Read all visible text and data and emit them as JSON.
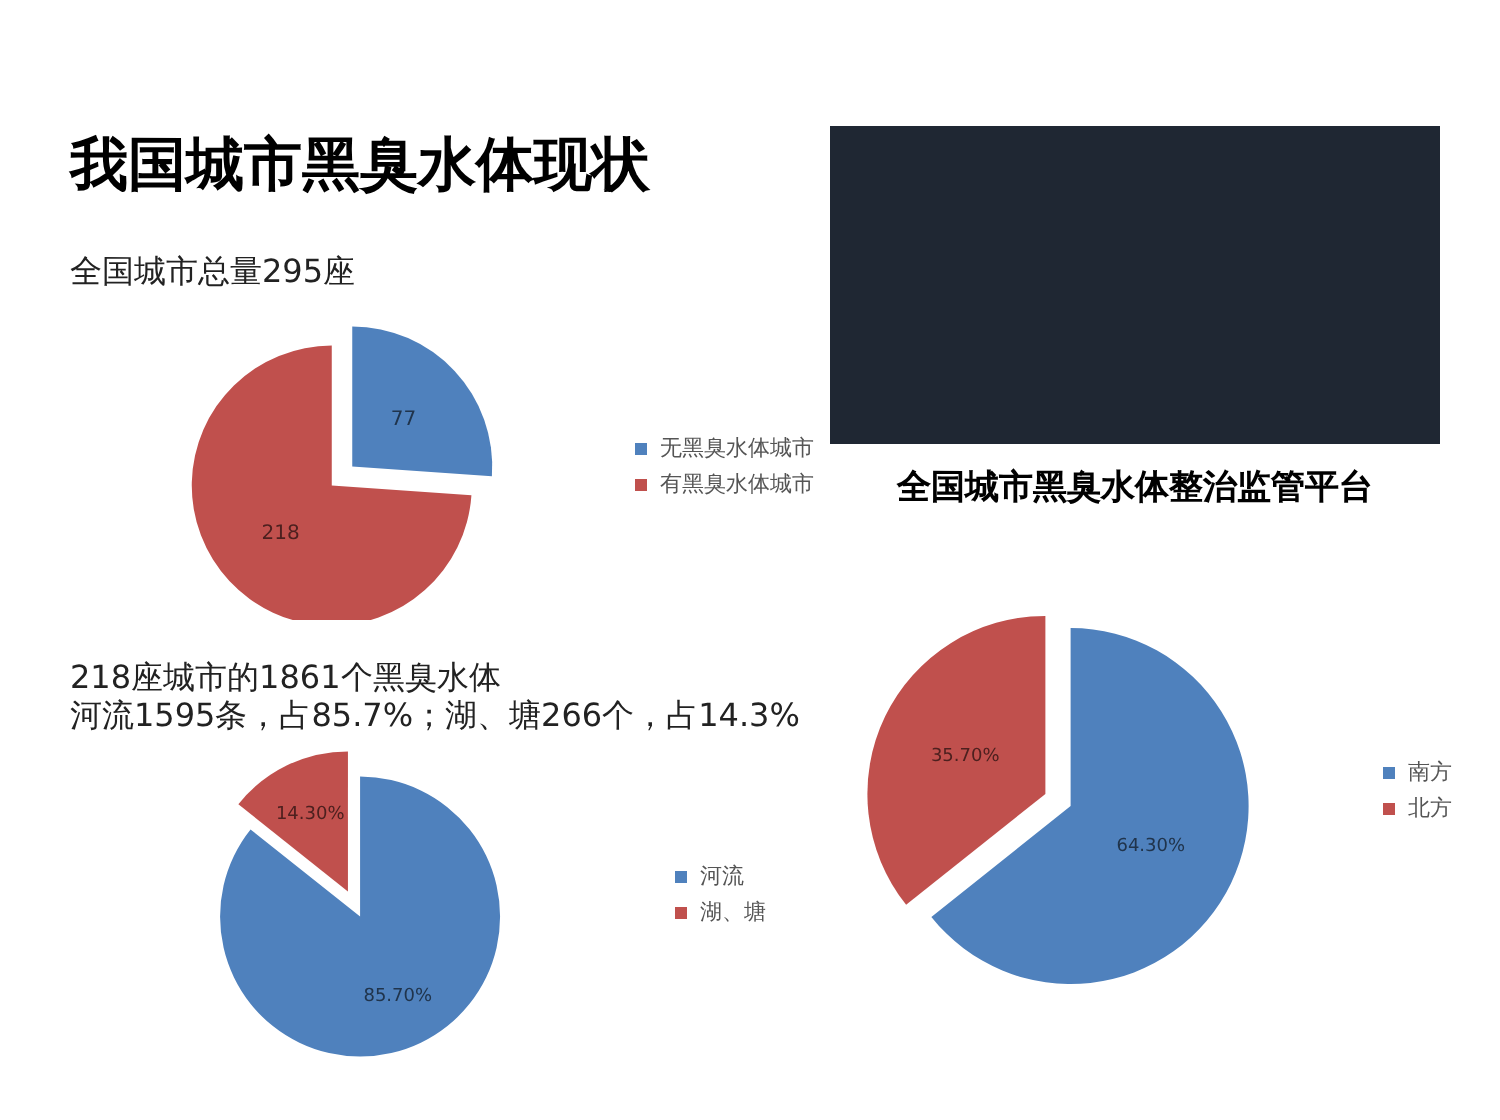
{
  "chart_data": [
    {
      "type": "pie",
      "title": "我国城市黑臭水体现状",
      "subtitle": "全国城市总量295座",
      "categories": [
        "无黑臭水体城市",
        "有黑臭水体城市"
      ],
      "values": [
        77,
        218
      ],
      "colors": [
        "#4f81bd",
        "#c0504d"
      ],
      "data_labels": true,
      "legend": "right"
    },
    {
      "type": "other",
      "title": "全国城市黑臭水体整治监管平台"
    },
    {
      "type": "pie",
      "title": "218座城市的1861个黑臭水体",
      "subtitle": "河流1595条，占85.7%；湖、塘266个，占14.3%",
      "categories": [
        "河流",
        "湖、塘"
      ],
      "values": [
        85.7,
        14.3
      ],
      "colors": [
        "#4f81bd",
        "#c0504d"
      ],
      "value_labels": [
        "85.70%",
        "14.30%"
      ],
      "legend": "right"
    },
    {
      "type": "pie",
      "categories": [
        "南方",
        "北方"
      ],
      "values": [
        64.3,
        35.7
      ],
      "colors": [
        "#4f81bd",
        "#c0504d"
      ],
      "value_labels": [
        "64.30%",
        "35.70%"
      ],
      "legend": "right"
    }
  ]
}
